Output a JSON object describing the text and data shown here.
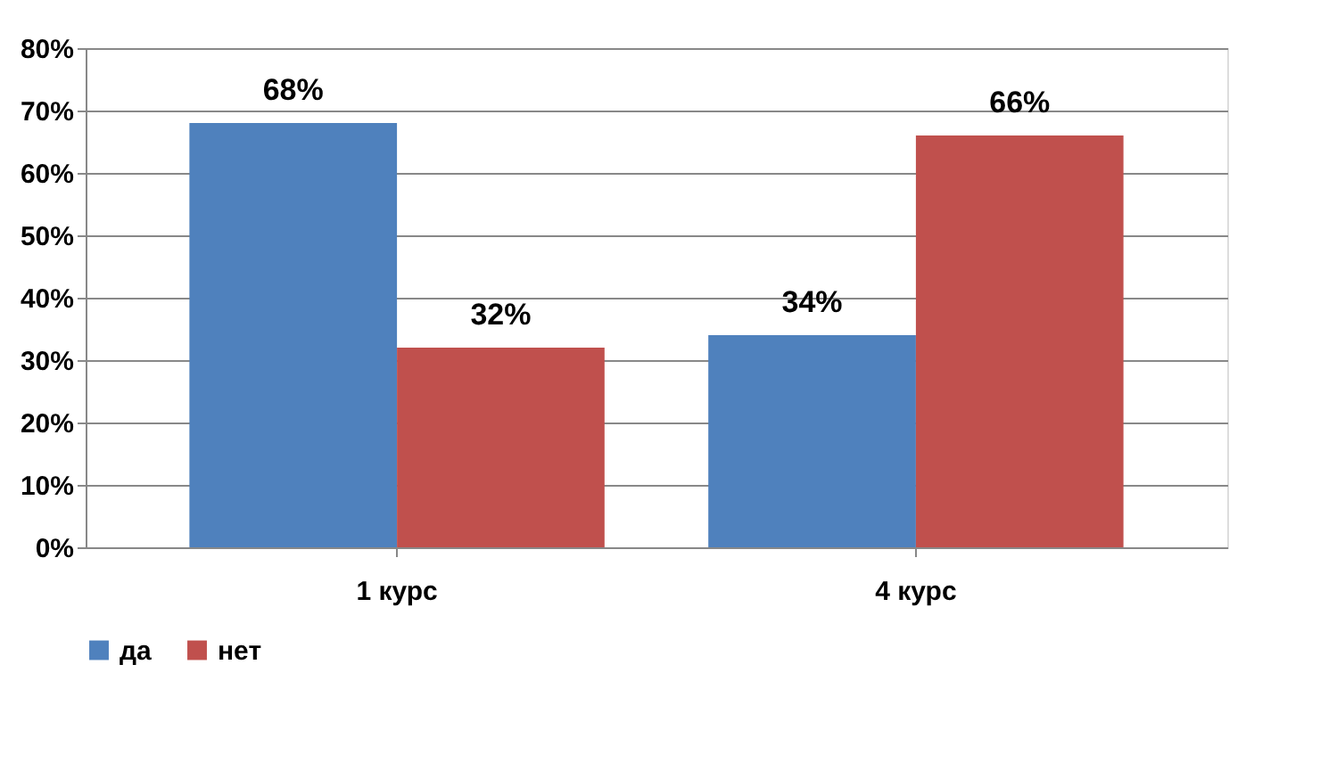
{
  "chart_data": {
    "type": "bar",
    "categories": [
      "1 курс",
      "4 курс"
    ],
    "series": [
      {
        "name": "да",
        "color": "#4f81bd",
        "values": [
          68,
          34
        ],
        "value_labels": [
          "68%",
          "34%"
        ]
      },
      {
        "name": "нет",
        "color": "#c0504d",
        "values": [
          32,
          66
        ],
        "value_labels": [
          "32%",
          "66%"
        ]
      }
    ],
    "ylim": [
      0,
      80
    ],
    "yticks": [
      {
        "value": 0,
        "label": "0%"
      },
      {
        "value": 10,
        "label": "10%"
      },
      {
        "value": 20,
        "label": "20%"
      },
      {
        "value": 30,
        "label": "30%"
      },
      {
        "value": 40,
        "label": "40%"
      },
      {
        "value": 50,
        "label": "50%"
      },
      {
        "value": 60,
        "label": "60%"
      },
      {
        "value": 70,
        "label": "70%"
      },
      {
        "value": 80,
        "label": "80%"
      }
    ],
    "grid": "y",
    "legend": "bottom"
  }
}
